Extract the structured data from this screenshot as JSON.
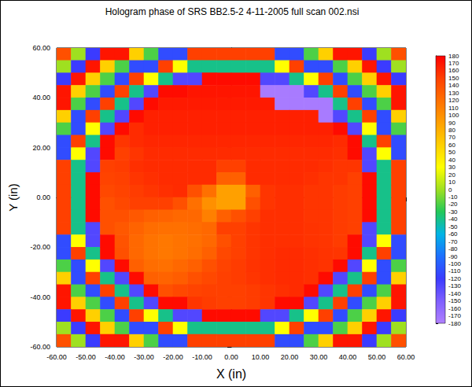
{
  "chart_data": {
    "type": "heatmap",
    "title": "Hologram phase of SRS BB2.5-2 4-11-2005 full scan 002.nsi",
    "x_label": "X (in)",
    "y_label": "Y (in)",
    "xlim": [
      -60,
      60
    ],
    "ylim": [
      -60,
      60
    ],
    "xticks": [
      {
        "value": -60,
        "label": "-60.00"
      },
      {
        "value": -50,
        "label": "-50.00"
      },
      {
        "value": -40,
        "label": "-40.00"
      },
      {
        "value": -30,
        "label": "-30.00"
      },
      {
        "value": -20,
        "label": "-20.00"
      },
      {
        "value": -10,
        "label": "-10.00"
      },
      {
        "value": 0,
        "label": "0.00"
      },
      {
        "value": 10,
        "label": "10.00"
      },
      {
        "value": 20,
        "label": "20.00"
      },
      {
        "value": 30,
        "label": "30.00"
      },
      {
        "value": 40,
        "label": "40.00"
      },
      {
        "value": 50,
        "label": "50.00"
      },
      {
        "value": 60,
        "label": "60.00"
      }
    ],
    "yticks": [
      {
        "value": -60,
        "label": "-60.00"
      },
      {
        "value": -40,
        "label": "-40.00"
      },
      {
        "value": -20,
        "label": "-20.00"
      },
      {
        "value": 0,
        "label": "0.00"
      },
      {
        "value": 20,
        "label": "20.00"
      },
      {
        "value": 40,
        "label": "40.00"
      },
      {
        "value": 60,
        "label": "60.00"
      }
    ],
    "grid": false,
    "cells": {
      "x_edges": [
        -60,
        -55,
        -50,
        -45,
        -40,
        -35,
        -30,
        -25,
        -20,
        -15,
        -10,
        -5,
        0,
        5,
        10,
        15,
        20,
        25,
        30,
        35,
        40,
        45,
        50,
        55,
        60
      ],
      "y_edges": [
        60,
        55,
        50,
        45,
        40,
        35,
        30,
        25,
        20,
        15,
        10,
        5,
        0,
        -5,
        -10,
        -15,
        -20,
        -25,
        -30,
        -35,
        -40,
        -45,
        -50,
        -55,
        -60
      ],
      "values": [
        [
          140,
          0,
          -120,
          170,
          170,
          60,
          -20,
          -110,
          -110,
          150,
          150,
          150,
          150,
          150,
          150,
          -110,
          -110,
          -20,
          60,
          170,
          170,
          -120,
          0,
          140
        ],
        [
          0,
          -120,
          170,
          60,
          -20,
          -110,
          -110,
          150,
          30,
          -40,
          -40,
          -40,
          -40,
          -40,
          -40,
          30,
          150,
          -110,
          -110,
          -20,
          60,
          170,
          -120,
          0
        ],
        [
          -120,
          170,
          60,
          -20,
          -110,
          150,
          30,
          -40,
          -130,
          -130,
          175,
          175,
          175,
          175,
          -130,
          -130,
          -40,
          30,
          150,
          -110,
          -20,
          60,
          170,
          -120
        ],
        [
          170,
          60,
          -20,
          -110,
          150,
          -40,
          -130,
          175,
          175,
          170,
          170,
          170,
          170,
          170,
          -175,
          -175,
          -175,
          -130,
          -40,
          150,
          -110,
          -20,
          60,
          170
        ],
        [
          170,
          -20,
          -110,
          150,
          -40,
          -130,
          175,
          168,
          168,
          168,
          168,
          168,
          168,
          168,
          168,
          -175,
          -175,
          -175,
          -175,
          -40,
          150,
          -110,
          -20,
          170
        ],
        [
          60,
          -110,
          150,
          -40,
          -130,
          175,
          165,
          165,
          165,
          165,
          165,
          165,
          165,
          165,
          165,
          165,
          165,
          165,
          -175,
          -130,
          -40,
          150,
          -110,
          60
        ],
        [
          -20,
          -110,
          30,
          -130,
          175,
          160,
          165,
          165,
          165,
          165,
          165,
          165,
          165,
          165,
          165,
          165,
          165,
          165,
          165,
          175,
          -130,
          30,
          -110,
          -20
        ],
        [
          -110,
          150,
          -40,
          175,
          155,
          160,
          162,
          162,
          162,
          162,
          162,
          162,
          162,
          162,
          162,
          162,
          162,
          162,
          162,
          160,
          175,
          -40,
          150,
          -110
        ],
        [
          -110,
          30,
          -130,
          175,
          150,
          155,
          160,
          160,
          160,
          160,
          160,
          160,
          160,
          160,
          160,
          160,
          160,
          160,
          160,
          158,
          175,
          -130,
          30,
          -110
        ],
        [
          150,
          -40,
          -130,
          150,
          152,
          158,
          160,
          160,
          160,
          160,
          160,
          150,
          150,
          160,
          160,
          160,
          160,
          160,
          158,
          155,
          155,
          -130,
          -40,
          150
        ],
        [
          150,
          -40,
          175,
          148,
          150,
          155,
          158,
          160,
          160,
          160,
          160,
          130,
          130,
          160,
          160,
          160,
          160,
          158,
          155,
          155,
          150,
          175,
          -40,
          150
        ],
        [
          150,
          -40,
          175,
          145,
          148,
          152,
          155,
          158,
          160,
          140,
          120,
          90,
          90,
          130,
          155,
          158,
          158,
          155,
          155,
          152,
          150,
          175,
          -40,
          150
        ],
        [
          150,
          -40,
          175,
          140,
          145,
          150,
          150,
          150,
          140,
          120,
          100,
          90,
          90,
          140,
          155,
          158,
          158,
          155,
          155,
          152,
          150,
          175,
          -40,
          150
        ],
        [
          150,
          -40,
          175,
          140,
          140,
          135,
          130,
          128,
          125,
          125,
          110,
          130,
          140,
          150,
          158,
          158,
          158,
          155,
          155,
          152,
          150,
          175,
          -40,
          150
        ],
        [
          150,
          -40,
          -130,
          140,
          135,
          128,
          122,
          120,
          120,
          122,
          125,
          150,
          150,
          155,
          158,
          158,
          158,
          156,
          155,
          152,
          150,
          -130,
          -40,
          150
        ],
        [
          -110,
          30,
          -130,
          175,
          138,
          125,
          118,
          115,
          118,
          120,
          125,
          140,
          150,
          155,
          158,
          158,
          158,
          156,
          155,
          152,
          175,
          -130,
          30,
          -110
        ],
        [
          -110,
          150,
          -40,
          175,
          140,
          125,
          118,
          115,
          118,
          122,
          130,
          145,
          150,
          155,
          158,
          160,
          160,
          158,
          156,
          155,
          175,
          -40,
          150,
          -110
        ],
        [
          -20,
          -110,
          30,
          -130,
          175,
          130,
          122,
          120,
          125,
          130,
          140,
          148,
          152,
          156,
          158,
          160,
          160,
          158,
          156,
          175,
          -130,
          30,
          -110,
          -20
        ],
        [
          60,
          -110,
          150,
          -40,
          -130,
          175,
          130,
          128,
          132,
          140,
          145,
          150,
          152,
          155,
          158,
          160,
          160,
          158,
          175,
          -130,
          -40,
          150,
          -110,
          60
        ],
        [
          170,
          -20,
          -110,
          150,
          -40,
          -130,
          175,
          140,
          145,
          148,
          150,
          150,
          150,
          152,
          155,
          158,
          160,
          175,
          -130,
          -40,
          150,
          -110,
          -20,
          170
        ],
        [
          170,
          60,
          -20,
          -110,
          150,
          -40,
          -130,
          175,
          175,
          155,
          152,
          150,
          150,
          152,
          155,
          175,
          175,
          -130,
          -40,
          150,
          -110,
          -20,
          60,
          170
        ],
        [
          -120,
          170,
          60,
          -20,
          -110,
          150,
          30,
          -40,
          -130,
          -130,
          175,
          175,
          175,
          175,
          -130,
          -130,
          -40,
          30,
          150,
          -110,
          -20,
          60,
          170,
          -120
        ],
        [
          0,
          -120,
          170,
          60,
          -20,
          -110,
          -110,
          150,
          30,
          -40,
          -40,
          -40,
          -40,
          -40,
          -40,
          30,
          150,
          -110,
          -110,
          -20,
          60,
          170,
          -120,
          0
        ],
        [
          140,
          0,
          -120,
          170,
          170,
          60,
          -20,
          -110,
          -110,
          150,
          150,
          150,
          150,
          150,
          150,
          -110,
          -110,
          -20,
          60,
          170,
          170,
          -120,
          0,
          140
        ]
      ]
    },
    "colorbar": {
      "range": [
        -180,
        180
      ],
      "ticks": [
        180,
        170,
        160,
        150,
        140,
        130,
        120,
        110,
        100,
        90,
        80,
        70,
        60,
        50,
        40,
        30,
        20,
        10,
        0,
        -10,
        -20,
        -30,
        -40,
        -50,
        -60,
        -70,
        -80,
        -90,
        -100,
        -110,
        -120,
        -130,
        -140,
        -150,
        -160,
        -170,
        -180
      ]
    }
  }
}
